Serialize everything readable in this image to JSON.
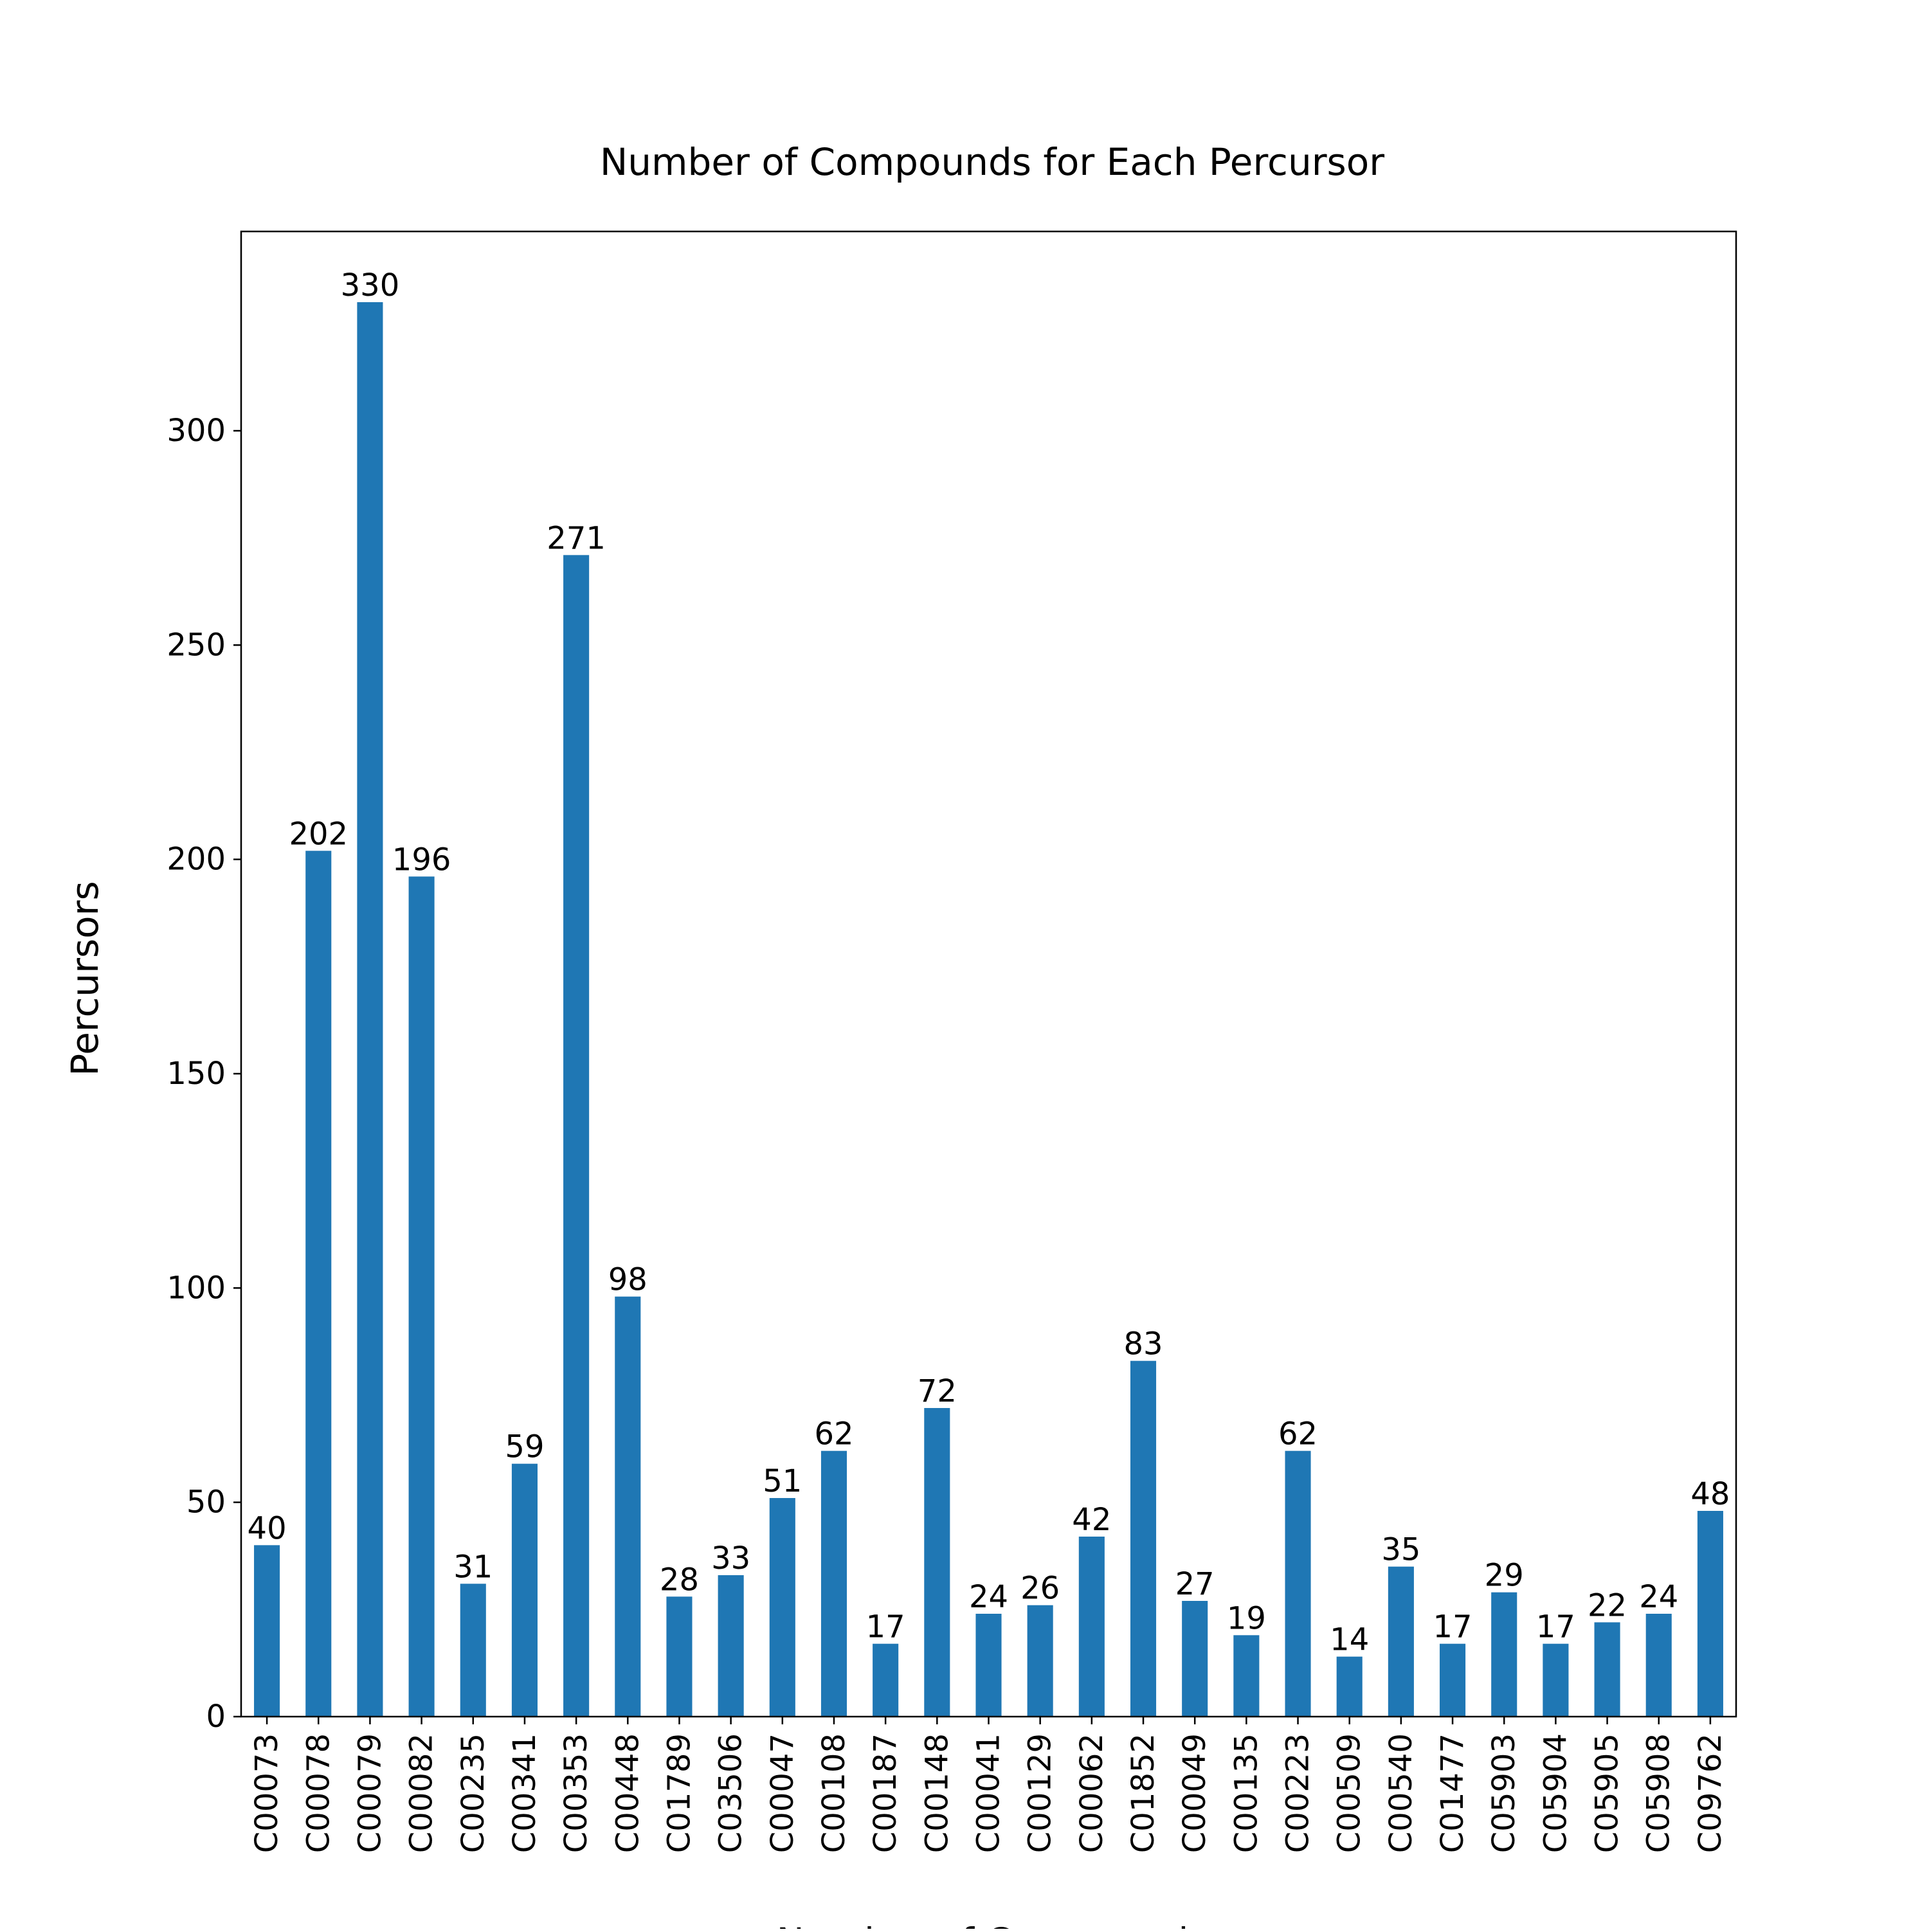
{
  "chart_data": {
    "type": "bar",
    "title": "Number of Compounds for Each Percursor",
    "xlabel": "Number of Compounds",
    "ylabel": "Percursors",
    "categories": [
      "C00073",
      "C00078",
      "C00079",
      "C00082",
      "C00235",
      "C00341",
      "C00353",
      "C00448",
      "C01789",
      "C03506",
      "C00047",
      "C00108",
      "C00187",
      "C00148",
      "C00041",
      "C00129",
      "C00062",
      "C01852",
      "C00049",
      "C00135",
      "C00223",
      "C00509",
      "C00540",
      "C01477",
      "C05903",
      "C05904",
      "C05905",
      "C05908",
      "C09762"
    ],
    "values": [
      40,
      202,
      330,
      196,
      31,
      59,
      271,
      98,
      28,
      33,
      51,
      62,
      17,
      72,
      24,
      26,
      42,
      83,
      27,
      19,
      62,
      14,
      35,
      17,
      29,
      17,
      22,
      24,
      48
    ],
    "ylim": [
      0,
      346.5
    ],
    "yticks": [
      0,
      50,
      100,
      150,
      200,
      250,
      300
    ],
    "bar_color": "#1f77b4",
    "grid": false,
    "legend": "none"
  }
}
